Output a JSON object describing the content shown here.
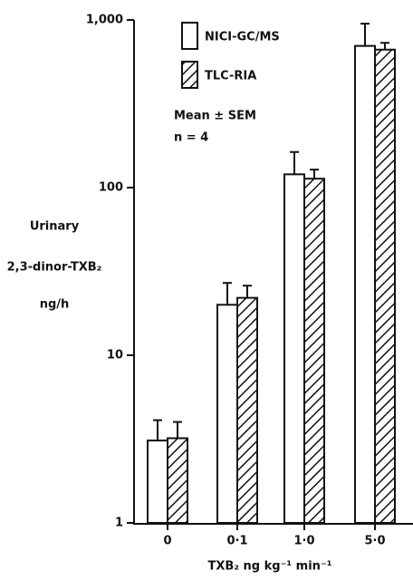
{
  "chart_data": {
    "type": "bar",
    "log_y": true,
    "y_label_lines": [
      "Urinary",
      "2,3-dinor-TXB₂",
      "ng/h"
    ],
    "x_label": "TXB₂  ng kg⁻¹ min⁻¹",
    "annotations": [
      "Mean ± SEM",
      "n = 4"
    ],
    "categories": [
      "0",
      "0·1",
      "1·0",
      "5·0"
    ],
    "series": [
      {
        "name": "NICI-GC/MS",
        "color": "#ffffff",
        "hatch": false,
        "values": [
          3.1,
          20,
          120,
          700
        ],
        "errors": [
          1.0,
          7,
          43,
          250
        ]
      },
      {
        "name": "TLC-RIA",
        "color": "#ffffff",
        "hatch": true,
        "values": [
          3.2,
          22,
          113,
          665
        ],
        "errors": [
          0.8,
          4,
          15,
          65
        ]
      }
    ],
    "ylim": [
      1,
      1000
    ],
    "yticks": [
      1,
      10,
      100,
      {
        "value": 1000,
        "label": "1,000"
      }
    ]
  }
}
